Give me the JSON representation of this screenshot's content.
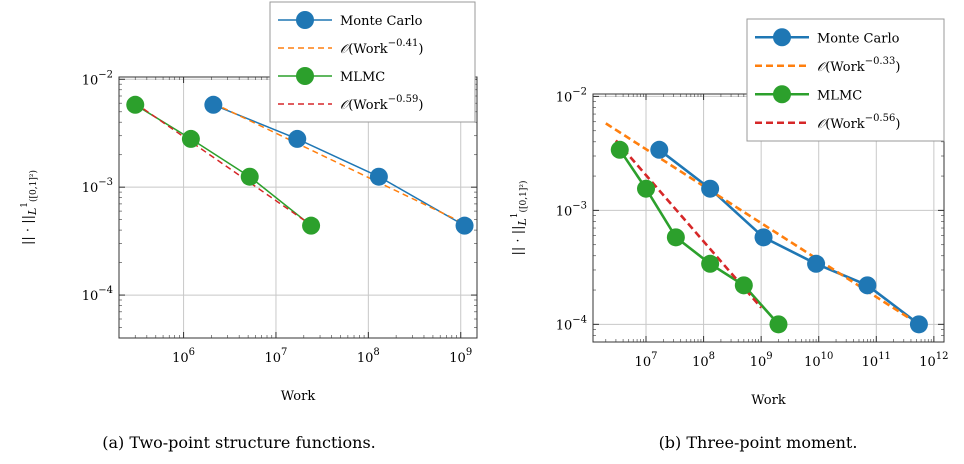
{
  "chart_data": [
    {
      "type": "line",
      "caption": "(a) Two-point structure functions.",
      "xlabel": "Work",
      "ylabel": "|| · ||",
      "ylabel_sub": "L",
      "ylabel_sup": "1",
      "ylabel_domain": "([0,1]²)",
      "xscale": "log",
      "yscale": "log",
      "xlim": [
        200000,
        1500000000
      ],
      "ylim": [
        4e-05,
        0.0105
      ],
      "x_ticks": [
        {
          "exp": "6",
          "value": 1000000
        },
        {
          "exp": "7",
          "value": 10000000
        },
        {
          "exp": "8",
          "value": 100000000
        },
        {
          "exp": "9",
          "value": 1000000000
        }
      ],
      "y_ticks": [
        {
          "exp": "−4",
          "value": 0.0001
        },
        {
          "exp": "−3",
          "value": 0.001
        },
        {
          "exp": "−2",
          "value": 0.01
        }
      ],
      "grid": true,
      "legend_position": "top-right, above plot",
      "series": [
        {
          "name": "Monte Carlo",
          "style": "solid-marker",
          "color": "#1f77b4",
          "x": [
            2100000,
            17000000,
            130000000,
            1100000000
          ],
          "y": [
            0.0058,
            0.0028,
            0.00125,
            0.00044
          ]
        },
        {
          "name": "O(Work^-0.41)",
          "label_exp": "−0.41",
          "style": "dashed",
          "color": "#ff7f0e",
          "x": [
            2100000,
            1100000000
          ],
          "y": [
            0.006,
            0.00046
          ]
        },
        {
          "name": "MLMC",
          "style": "solid-marker",
          "color": "#2ca02c",
          "x": [
            300000,
            1200000,
            5200000,
            24000000
          ],
          "y": [
            0.0058,
            0.0028,
            0.00125,
            0.00044
          ]
        },
        {
          "name": "O(Work^-0.59)",
          "label_exp": "−0.59",
          "style": "dashed",
          "color": "#d62728",
          "x": [
            300000,
            22000000
          ],
          "y": [
            0.006,
            0.00047
          ]
        }
      ]
    },
    {
      "type": "line",
      "caption": "(b) Three-point moment.",
      "xlabel": "Work",
      "ylabel": "|| · ||",
      "ylabel_sub": "L",
      "ylabel_sup": "1",
      "ylabel_domain": "([0,1]²)",
      "xscale": "log",
      "yscale": "log",
      "xlim": [
        1200000,
        1500000000000
      ],
      "ylim": [
        7e-05,
        0.0105
      ],
      "x_ticks": [
        {
          "exp": "7",
          "value": 10000000
        },
        {
          "exp": "8",
          "value": 100000000
        },
        {
          "exp": "9",
          "value": 1000000000
        },
        {
          "exp": "10",
          "value": 10000000000
        },
        {
          "exp": "11",
          "value": 100000000000
        },
        {
          "exp": "12",
          "value": 1000000000000
        }
      ],
      "y_ticks": [
        {
          "exp": "−4",
          "value": 0.0001
        },
        {
          "exp": "−3",
          "value": 0.001
        },
        {
          "exp": "−2",
          "value": 0.01
        }
      ],
      "grid": true,
      "legend_position": "top-right",
      "series": [
        {
          "name": "Monte Carlo",
          "style": "solid-marker",
          "color": "#1f77b4",
          "x": [
            17000000,
            130000000,
            1100000000,
            9000000000,
            70000000000,
            550000000000
          ],
          "y": [
            0.0034,
            0.00155,
            0.00058,
            0.00034,
            0.00022,
            0.0001
          ]
        },
        {
          "name": "O(Work^-0.33)",
          "label_exp": "−0.33",
          "style": "dashed",
          "color": "#ff7f0e",
          "x": [
            2000000,
            550000000000
          ],
          "y": [
            0.0058,
            0.0001
          ]
        },
        {
          "name": "MLMC",
          "style": "solid-marker",
          "color": "#2ca02c",
          "x": [
            3500000,
            10000000,
            33000000,
            130000000,
            500000000,
            2000000000
          ],
          "y": [
            0.0034,
            0.00155,
            0.00058,
            0.00034,
            0.00022,
            0.0001
          ]
        },
        {
          "name": "O(Work^-0.56)",
          "label_exp": "−0.56",
          "style": "dashed",
          "color": "#d62728",
          "x": [
            3000000,
            1000000000
          ],
          "y": [
            0.0041,
            0.00014
          ]
        }
      ]
    }
  ]
}
